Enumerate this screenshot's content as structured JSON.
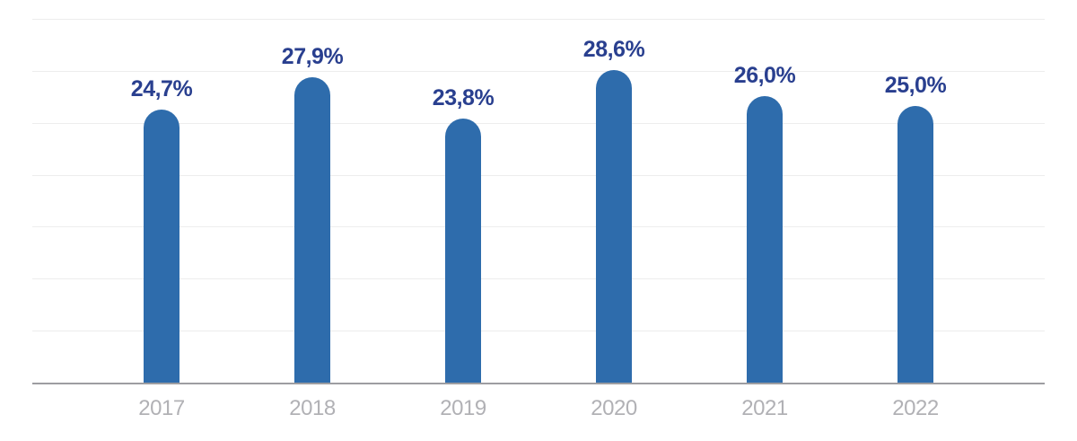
{
  "chart_data": {
    "type": "bar",
    "title": "",
    "xlabel": "",
    "ylabel": "",
    "categories": [
      "2017",
      "2018",
      "2019",
      "2020",
      "2021",
      "2022"
    ],
    "values": [
      24.7,
      27.9,
      23.8,
      28.6,
      26.0,
      25.0
    ],
    "value_labels": [
      "24,7%",
      "27,9%",
      "23,8%",
      "28,6%",
      "26,0%",
      "25,0%"
    ],
    "decimal_separator": ",",
    "y_axis_tick_labels_visible": false,
    "legend": null,
    "grid": "horizontal",
    "gridline_intervals": 7,
    "value_labels_position": "above-bars",
    "bar_cap": "rounded-top",
    "colors": {
      "bar": "#2e6cac",
      "value_label": "#293f8f",
      "category_label": "#b1b1b5",
      "gridline": "#ededed",
      "axis_line": "#9d9da1",
      "background": "#ffffff"
    }
  }
}
